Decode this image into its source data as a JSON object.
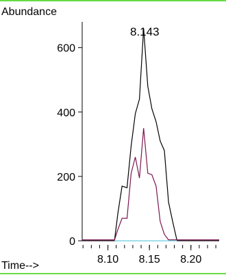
{
  "chart_data": {
    "type": "line",
    "ylabel": "Abundance",
    "xlabel": "Time-->",
    "annotation": "8.143",
    "xlim": [
      8.069,
      8.234
    ],
    "ylim": [
      0,
      680
    ],
    "x_ticks": [
      8.1,
      8.15,
      8.2
    ],
    "x_tick_labels": [
      "8.10",
      "8.15",
      "8.20"
    ],
    "y_ticks": [
      0,
      200,
      400,
      600
    ],
    "y_tick_labels": [
      "0",
      "200",
      "400",
      "600"
    ],
    "x_minor_step": 0.01,
    "grid": false,
    "legend": "none",
    "series": [
      {
        "color": "#000000",
        "x": [
          8.069,
          8.108,
          8.112,
          8.117,
          8.123,
          8.128,
          8.133,
          8.138,
          8.143,
          8.148,
          8.153,
          8.158,
          8.163,
          8.168,
          8.173,
          8.178,
          8.183,
          8.234
        ],
        "y": [
          3,
          3,
          85,
          170,
          165,
          295,
          395,
          440,
          660,
          480,
          410,
          370,
          310,
          280,
          120,
          60,
          3,
          3
        ]
      },
      {
        "color": "#7a1450",
        "x": [
          8.069,
          8.108,
          8.112,
          8.117,
          8.123,
          8.128,
          8.133,
          8.138,
          8.143,
          8.148,
          8.153,
          8.158,
          8.163,
          8.168,
          8.173,
          8.178,
          8.234
        ],
        "y": [
          3,
          3,
          35,
          70,
          70,
          210,
          260,
          195,
          350,
          210,
          205,
          170,
          60,
          20,
          3,
          3,
          3
        ]
      },
      {
        "color": "#66ccdd",
        "x": [
          8.108,
          8.183
        ],
        "y": [
          0,
          0
        ]
      }
    ]
  }
}
